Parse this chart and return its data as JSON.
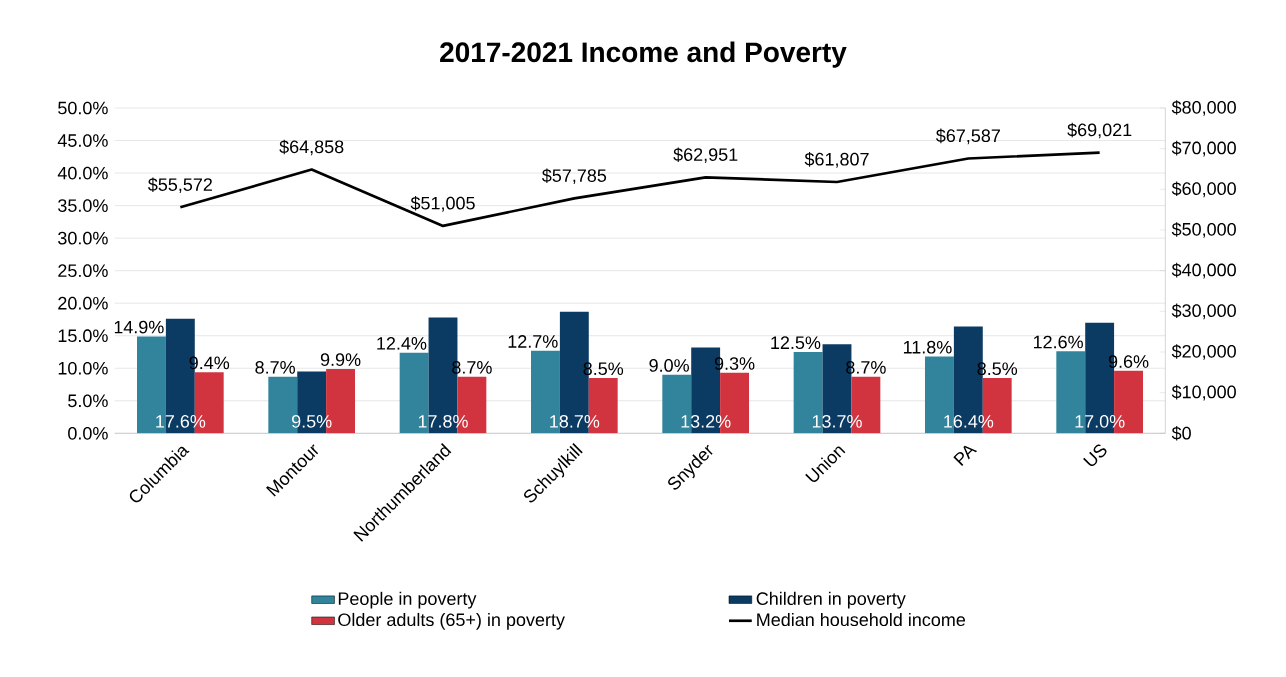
{
  "chart_data": {
    "type": "bar",
    "title": "2017-2021 Income and Poverty",
    "categories": [
      "Columbia",
      "Montour",
      "Northumberland",
      "Schuylkill",
      "Snyder",
      "Union",
      "PA",
      "US"
    ],
    "series": [
      {
        "name": "People in poverty",
        "color": "#31849b",
        "values": [
          14.9,
          8.7,
          12.4,
          12.7,
          9.0,
          12.5,
          11.8,
          12.6
        ],
        "value_labels": [
          "14.9%",
          "8.7%",
          "12.4%",
          "12.7%",
          "9.0%",
          "12.5%",
          "11.8%",
          "12.6%"
        ]
      },
      {
        "name": "Children in poverty",
        "color": "#0b3a63",
        "values": [
          17.6,
          9.5,
          17.8,
          18.7,
          13.2,
          13.7,
          16.4,
          17.0
        ],
        "value_labels": [
          "17.6%",
          "9.5%",
          "17.8%",
          "18.7%",
          "13.2%",
          "13.7%",
          "16.4%",
          "17.0%"
        ]
      },
      {
        "name": "Older adults (65+) in poverty",
        "color": "#d1343f",
        "values": [
          9.4,
          9.9,
          8.7,
          8.5,
          9.3,
          8.7,
          8.5,
          9.6
        ],
        "value_labels": [
          "9.4%",
          "9.9%",
          "8.7%",
          "8.5%",
          "9.3%",
          "8.7%",
          "8.5%",
          "9.6%"
        ]
      },
      {
        "name": "Median household income",
        "type": "line",
        "axis": "y2",
        "color": "#000000",
        "values": [
          55572,
          64858,
          51005,
          57785,
          62951,
          61807,
          67587,
          69021
        ],
        "value_labels": [
          "$55,572",
          "$64,858",
          "$51,005",
          "$57,785",
          "$62,951",
          "$61,807",
          "$67,587",
          "$69,021"
        ]
      }
    ],
    "ylim": [
      0,
      50
    ],
    "yticks": [
      {
        "value": 0,
        "label": "0.0%"
      },
      {
        "value": 5,
        "label": "5.0%"
      },
      {
        "value": 10,
        "label": "10.0%"
      },
      {
        "value": 15,
        "label": "15.0%"
      },
      {
        "value": 20,
        "label": "20.0%"
      },
      {
        "value": 25,
        "label": "25.0%"
      },
      {
        "value": 30,
        "label": "30.0%"
      },
      {
        "value": 35,
        "label": "35.0%"
      },
      {
        "value": 40,
        "label": "40.0%"
      },
      {
        "value": 45,
        "label": "45.0%"
      },
      {
        "value": 50,
        "label": "50.0%"
      }
    ],
    "y2lim": [
      0,
      80000
    ],
    "y2ticks": [
      {
        "value": 0,
        "label": "$0"
      },
      {
        "value": 10000,
        "label": "$10,000"
      },
      {
        "value": 20000,
        "label": "$20,000"
      },
      {
        "value": 30000,
        "label": "$30,000"
      },
      {
        "value": 40000,
        "label": "$40,000"
      },
      {
        "value": 50000,
        "label": "$50,000"
      },
      {
        "value": 60000,
        "label": "$60,000"
      },
      {
        "value": 70000,
        "label": "$70,000"
      },
      {
        "value": 80000,
        "label": "$80,000"
      }
    ],
    "grid": "y",
    "legend": "bottom"
  }
}
